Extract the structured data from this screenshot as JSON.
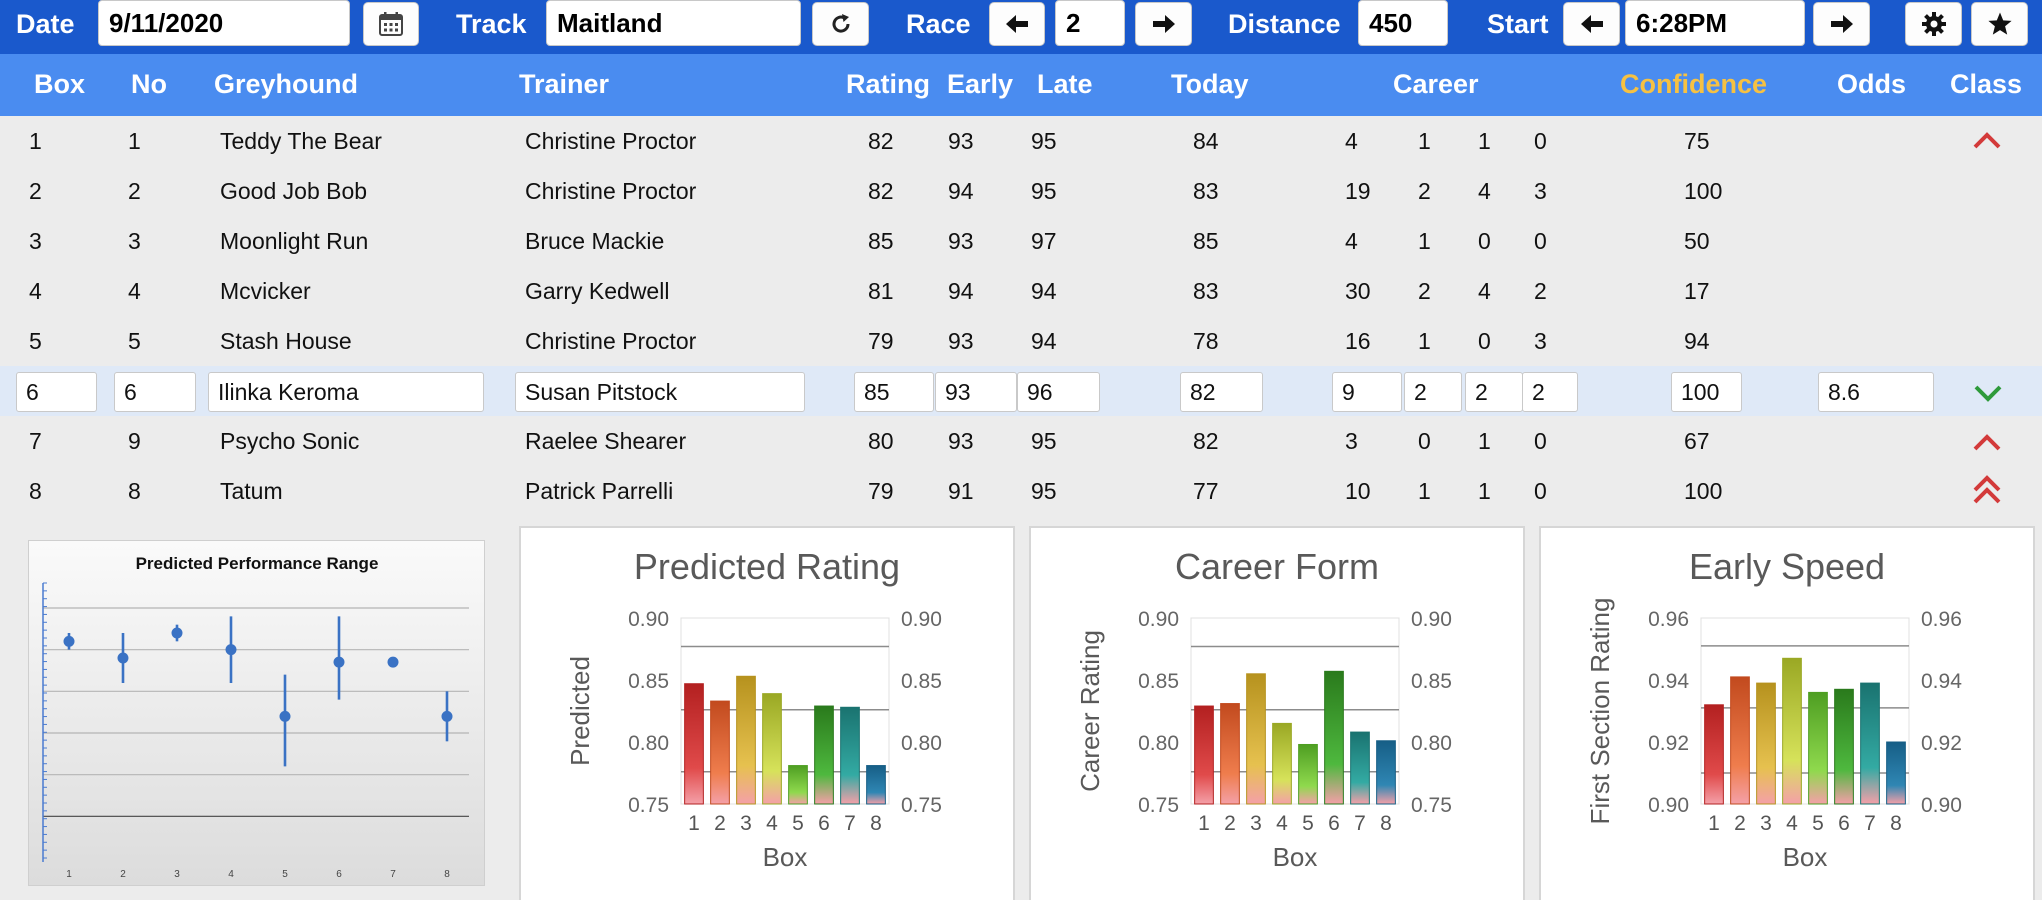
{
  "toolbar": {
    "date_label": "Date",
    "date_value": "9/11/2020",
    "calendar_icon": "calendar-icon",
    "track_label": "Track",
    "track_value": "Maitland",
    "refresh_icon": "refresh-icon",
    "race_label": "Race",
    "race_value": "2",
    "distance_label": "Distance",
    "distance_value": "450",
    "start_label": "Start",
    "start_value": "6:28PM",
    "settings_icon": "gear-icon",
    "favourite_icon": "star-icon"
  },
  "columns": {
    "box": "Box",
    "no": "No",
    "greyhound": "Greyhound",
    "trainer": "Trainer",
    "rating": "Rating",
    "early": "Early",
    "late": "Late",
    "today": "Today",
    "career": "Career",
    "confidence": "Confidence",
    "odds": "Odds",
    "class": "Class"
  },
  "colors": {
    "toolbar": "#1a59cc",
    "header": "#4a8cf0",
    "confidence_header": "#f6c142",
    "class_up": "#d33a3a",
    "class_down": "#2e9a3a",
    "selected_row": "#dfe9f7"
  },
  "runners": [
    {
      "box": "1",
      "no": "1",
      "greyhound": "Teddy The Bear",
      "trainer": "Christine Proctor",
      "rating": "82",
      "early": "93",
      "late": "95",
      "today": "84",
      "starts": "4",
      "wins": "1",
      "seconds": "1",
      "thirds": "0",
      "confidence": "75",
      "odds": "",
      "class": "up"
    },
    {
      "box": "2",
      "no": "2",
      "greyhound": "Good Job Bob",
      "trainer": "Christine Proctor",
      "rating": "82",
      "early": "94",
      "late": "95",
      "today": "83",
      "starts": "19",
      "wins": "2",
      "seconds": "4",
      "thirds": "3",
      "confidence": "100",
      "odds": "",
      "class": ""
    },
    {
      "box": "3",
      "no": "3",
      "greyhound": "Moonlight Run",
      "trainer": "Bruce Mackie",
      "rating": "85",
      "early": "93",
      "late": "97",
      "today": "85",
      "starts": "4",
      "wins": "1",
      "seconds": "0",
      "thirds": "0",
      "confidence": "50",
      "odds": "",
      "class": ""
    },
    {
      "box": "4",
      "no": "4",
      "greyhound": "Mcvicker",
      "trainer": "Garry Kedwell",
      "rating": "81",
      "early": "94",
      "late": "94",
      "today": "83",
      "starts": "30",
      "wins": "2",
      "seconds": "4",
      "thirds": "2",
      "confidence": "17",
      "odds": "",
      "class": ""
    },
    {
      "box": "5",
      "no": "5",
      "greyhound": "Stash House",
      "trainer": "Christine Proctor",
      "rating": "79",
      "early": "93",
      "late": "94",
      "today": "78",
      "starts": "16",
      "wins": "1",
      "seconds": "0",
      "thirds": "3",
      "confidence": "94",
      "odds": "",
      "class": ""
    },
    {
      "box": "6",
      "no": "6",
      "greyhound": "Ilinka Keroma",
      "trainer": "Susan Pitstock",
      "rating": "85",
      "early": "93",
      "late": "96",
      "today": "82",
      "starts": "9",
      "wins": "2",
      "seconds": "2",
      "thirds": "2",
      "confidence": "100",
      "odds": "8.6",
      "class": "down"
    },
    {
      "box": "7",
      "no": "9",
      "greyhound": "Psycho Sonic",
      "trainer": "Raelee Shearer",
      "rating": "80",
      "early": "93",
      "late": "95",
      "today": "82",
      "starts": "3",
      "wins": "0",
      "seconds": "1",
      "thirds": "0",
      "confidence": "67",
      "odds": "",
      "class": "up"
    },
    {
      "box": "8",
      "no": "8",
      "greyhound": "Tatum",
      "trainer": "Patrick Parrelli",
      "rating": "79",
      "early": "91",
      "late": "95",
      "today": "77",
      "starts": "10",
      "wins": "1",
      "seconds": "1",
      "thirds": "0",
      "confidence": "100",
      "odds": "",
      "class": "double-up"
    }
  ],
  "chart_data": [
    {
      "type": "scatter",
      "title": "Predicted Performance Range",
      "x": [
        1,
        2,
        3,
        4,
        5,
        6,
        7,
        8
      ],
      "y": [
        0.86,
        0.84,
        0.87,
        0.85,
        0.77,
        0.835,
        0.835,
        0.77
      ],
      "error_low": [
        0.85,
        0.81,
        0.86,
        0.81,
        0.71,
        0.79,
        0.835,
        0.74
      ],
      "error_high": [
        0.87,
        0.87,
        0.88,
        0.89,
        0.82,
        0.89,
        0.835,
        0.8
      ],
      "ylim": [
        0.6,
        0.93
      ],
      "grid": true
    },
    {
      "type": "bar",
      "title": "Predicted Rating",
      "xlabel": "Box",
      "ylabel": "Predicted",
      "categories": [
        "1",
        "2",
        "3",
        "4",
        "5",
        "6",
        "7",
        "8"
      ],
      "values": [
        0.847,
        0.833,
        0.853,
        0.839,
        0.781,
        0.829,
        0.828,
        0.781
      ],
      "ylim": [
        0.75,
        0.9
      ],
      "yticks": [
        "0.75",
        "0.80",
        "0.85",
        "0.90"
      ],
      "reference_lines": [
        0.877,
        0.826,
        0.776
      ]
    },
    {
      "type": "bar",
      "title": "Career Form",
      "xlabel": "Box",
      "ylabel": "Career Rating",
      "categories": [
        "1",
        "2",
        "3",
        "4",
        "5",
        "6",
        "7",
        "8"
      ],
      "values": [
        0.829,
        0.831,
        0.855,
        0.815,
        0.798,
        0.857,
        0.808,
        0.801
      ],
      "ylim": [
        0.75,
        0.9
      ],
      "yticks": [
        "0.75",
        "0.80",
        "0.85",
        "0.90"
      ],
      "reference_lines": [
        0.877,
        0.826,
        0.776
      ]
    },
    {
      "type": "bar",
      "title": "Early Speed",
      "xlabel": "Box",
      "ylabel": "First Section Rating",
      "categories": [
        "1",
        "2",
        "3",
        "4",
        "5",
        "6",
        "7",
        "8"
      ],
      "values": [
        0.932,
        0.941,
        0.939,
        0.947,
        0.936,
        0.937,
        0.939,
        0.92
      ],
      "ylim": [
        0.9,
        0.96
      ],
      "yticks": [
        "0.90",
        "0.92",
        "0.94",
        "0.96"
      ],
      "reference_lines": [
        0.951,
        0.931,
        0.91
      ]
    }
  ]
}
